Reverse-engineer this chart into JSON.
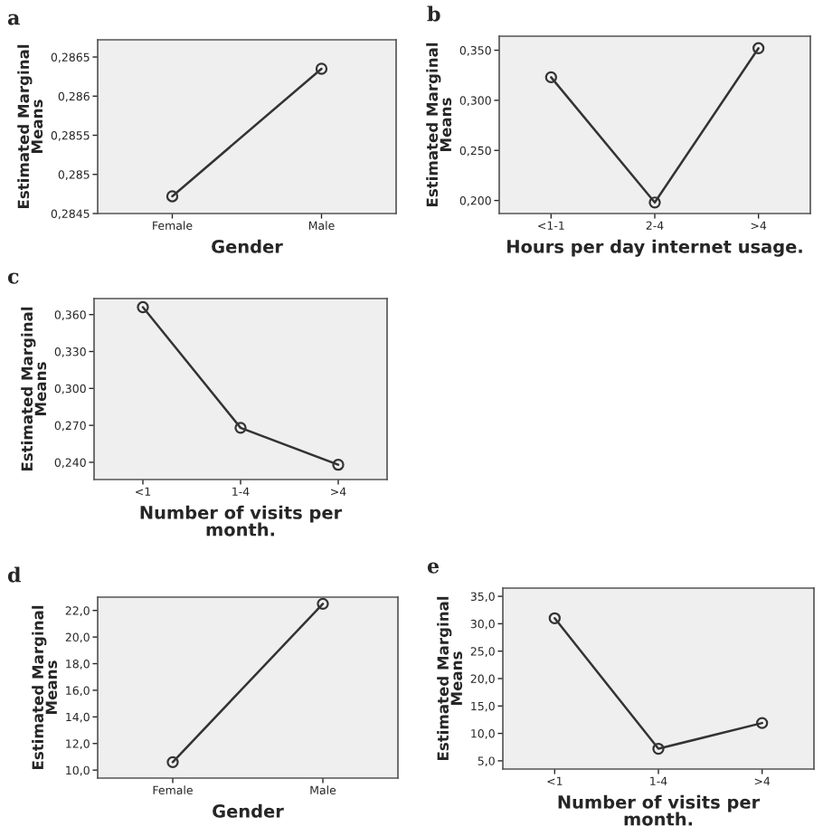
{
  "chart_data": [
    {
      "type": "line",
      "title": "a",
      "categories": [
        "Female",
        "Male"
      ],
      "xlabel": "Gender",
      "ylabel": "Estimated Marginal\nMeans",
      "values": [
        0.28472,
        0.28635
      ],
      "color": "#333333",
      "marker": "circle",
      "grid": false,
      "ylim": [
        0.2845,
        0.28672
      ],
      "yticks": [
        {
          "value": 0.2845,
          "label": "0,2845"
        },
        {
          "value": 0.285,
          "label": "0,285"
        },
        {
          "value": 0.2855,
          "label": "0,2855"
        },
        {
          "value": 0.286,
          "label": "0,286"
        },
        {
          "value": 0.2865,
          "label": "0,2865"
        }
      ]
    },
    {
      "type": "line",
      "title": "b",
      "categories": [
        "<1-1",
        "2-4",
        ">4"
      ],
      "xlabel": "Hours per day internet usage.",
      "ylabel": "Estimated Marginal\nMeans",
      "values": [
        0.323,
        0.198,
        0.352
      ],
      "color": "#333333",
      "marker": "circle",
      "grid": false,
      "ylim": [
        0.187,
        0.364
      ],
      "yticks": [
        {
          "value": 0.2,
          "label": "0,200"
        },
        {
          "value": 0.25,
          "label": "0,250"
        },
        {
          "value": 0.3,
          "label": "0,300"
        },
        {
          "value": 0.35,
          "label": "0,350"
        }
      ]
    },
    {
      "type": "line",
      "title": "c",
      "categories": [
        "<1",
        "1-4",
        ">4"
      ],
      "xlabel": "Number of visits per\nmonth.",
      "ylabel": "Estimated Marginal\nMeans",
      "values": [
        0.366,
        0.268,
        0.238
      ],
      "color": "#333333",
      "marker": "circle",
      "grid": false,
      "ylim": [
        0.226,
        0.373
      ],
      "yticks": [
        {
          "value": 0.24,
          "label": "0,240"
        },
        {
          "value": 0.27,
          "label": "0,270"
        },
        {
          "value": 0.3,
          "label": "0,300"
        },
        {
          "value": 0.33,
          "label": "0,330"
        },
        {
          "value": 0.36,
          "label": "0,360"
        }
      ]
    },
    {
      "type": "line",
      "title": "d",
      "categories": [
        "Female",
        "Male"
      ],
      "xlabel": "Gender",
      "ylabel": "Estimated Marginal\nMeans",
      "values": [
        10.6,
        22.5
      ],
      "color": "#333333",
      "marker": "circle",
      "grid": false,
      "ylim": [
        9.4,
        23.0
      ],
      "yticks": [
        {
          "value": 10,
          "label": "10,0"
        },
        {
          "value": 12,
          "label": "12,0"
        },
        {
          "value": 14,
          "label": "14,0"
        },
        {
          "value": 16,
          "label": "16,0"
        },
        {
          "value": 18,
          "label": "18,0"
        },
        {
          "value": 20,
          "label": "20,0"
        },
        {
          "value": 22,
          "label": "22,0"
        }
      ]
    },
    {
      "type": "line",
      "title": "e",
      "categories": [
        "<1",
        "1-4",
        ">4"
      ],
      "xlabel": "Number of visits per\nmonth.",
      "ylabel": "Estimated Marginal\nMeans",
      "values": [
        31.0,
        7.2,
        11.9
      ],
      "color": "#333333",
      "marker": "circle",
      "grid": false,
      "ylim": [
        3.5,
        36.5
      ],
      "yticks": [
        {
          "value": 5,
          "label": "5,0"
        },
        {
          "value": 10,
          "label": "10,0"
        },
        {
          "value": 15,
          "label": "15,0"
        },
        {
          "value": 20,
          "label": "20,0"
        },
        {
          "value": 25,
          "label": "25,0"
        },
        {
          "value": 30,
          "label": "30,0"
        },
        {
          "value": 35,
          "label": "35,0"
        }
      ]
    }
  ]
}
